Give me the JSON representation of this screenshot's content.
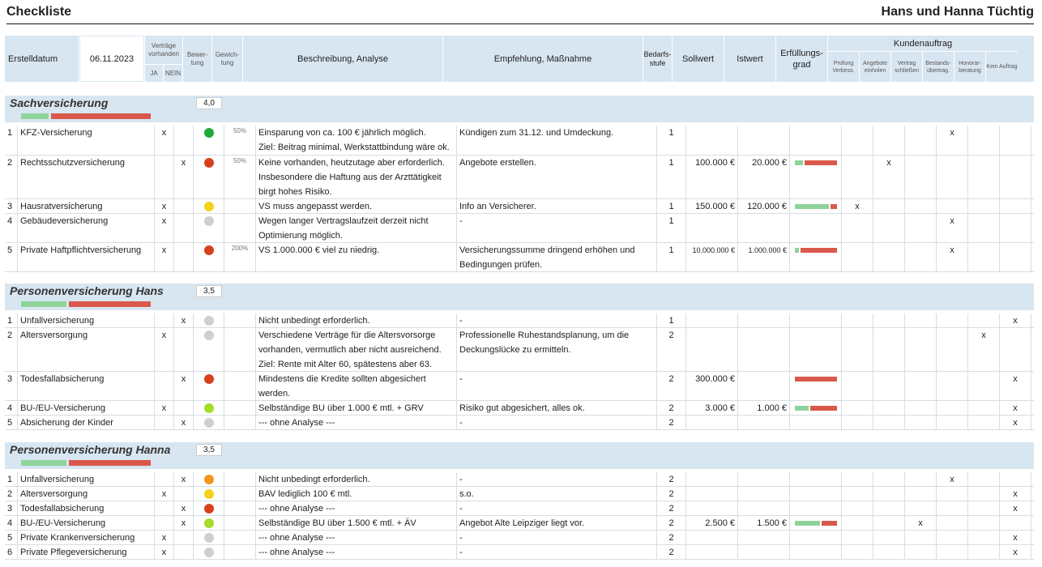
{
  "header": {
    "title": "Checkliste",
    "client": "Hans und Hanna Tüchtig"
  },
  "columns": {
    "erstelldatum": "Erstelldatum",
    "datum": "06.11.2023",
    "vertraege": "Verträge vorhanden",
    "ja": "JA",
    "nein": "NEIN",
    "bewertung": "Bewer-tung",
    "gewichtung": "Gewich-tung",
    "beschreibung": "Beschreibung, Analyse",
    "empfehlung": "Empfehlung, Maßnahme",
    "bedarf": "Bedarfs-stufe",
    "soll": "Sollwert",
    "ist": "Istwert",
    "erfuellung": "Erfüllungs-grad",
    "kundenauftrag": "Kundenauftrag",
    "ka": [
      "Prüfung Verbess.",
      "Angebote einholen",
      "Vertrag schließen",
      "Bestands-übertrag.",
      "Honorar-beratung",
      "Kein Auftrag"
    ]
  },
  "colors": {
    "green": "#1fa83a",
    "red": "#d7401e",
    "yellow": "#f3d21b",
    "grey": "#cfcfcf",
    "lime": "#a6dc2a",
    "orange": "#f3951f"
  },
  "sections": [
    {
      "title": "Sachversicherung",
      "score": "4,0",
      "bar": {
        "green": 0.23,
        "red": 0.77
      },
      "rows": [
        {
          "nr": "1",
          "name": "KFZ-Versicherung",
          "ja": "x",
          "nein": "",
          "rating": "green",
          "gew": "50%",
          "lines": [
            "Einsparung von ca. 100 € jährlich möglich.",
            "Ziel: Beitrag minimal, Werkstattbindung wäre ok."
          ],
          "emp": [
            "Kündigen zum 31.12. und Umdeckung."
          ],
          "stufe": "1",
          "soll": "",
          "ist": "",
          "fill": null,
          "ka": [
            "",
            "",
            "",
            "x",
            "",
            ""
          ]
        },
        {
          "nr": "2",
          "name": "Rechtsschutzversicherung",
          "ja": "",
          "nein": "x",
          "rating": "red",
          "gew": "50%",
          "lines": [
            "Keine vorhanden, heutzutage aber erforderlich.",
            "Insbesondere die Haftung aus der Arzttätigkeit",
            "birgt hohes Risiko."
          ],
          "emp": [
            "Angebote erstellen."
          ],
          "stufe": "1",
          "soll": "100.000 €",
          "ist": "20.000 €",
          "fill": 0.2,
          "ka": [
            "",
            "x",
            "",
            "",
            "",
            ""
          ]
        },
        {
          "nr": "3",
          "name": "Hausratversicherung",
          "ja": "x",
          "nein": "",
          "rating": "yellow",
          "gew": "",
          "lines": [
            "VS muss angepasst werden."
          ],
          "emp": [
            "Info an Versicherer."
          ],
          "stufe": "1",
          "soll": "150.000 €",
          "ist": "120.000 €",
          "fill": 0.8,
          "ka": [
            "x",
            "",
            "",
            "",
            "",
            ""
          ]
        },
        {
          "nr": "4",
          "name": "Gebäudeversicherung",
          "ja": "x",
          "nein": "",
          "rating": "grey",
          "gew": "",
          "lines": [
            "Wegen langer Vertragslaufzeit derzeit nicht",
            "Optimierung möglich."
          ],
          "emp": [
            "-"
          ],
          "stufe": "1",
          "soll": "",
          "ist": "",
          "fill": null,
          "ka": [
            "",
            "",
            "",
            "x",
            "",
            ""
          ]
        },
        {
          "nr": "5",
          "name": "Private Haftpflichtversicherung",
          "ja": "x",
          "nein": "",
          "rating": "red",
          "gew": "200%",
          "lines": [
            "VS 1.000.000 € viel zu niedrig."
          ],
          "emp": [
            "Versicherungssumme dringend erhöhen und",
            "Bedingungen prüfen."
          ],
          "stufe": "1",
          "soll": "10.000.000 €",
          "ist": "1.000.000 €",
          "fill": 0.1,
          "ka": [
            "",
            "",
            "",
            "x",
            "",
            ""
          ]
        }
      ]
    },
    {
      "title": "Personenversicherung Hans",
      "score": "3,5",
      "bar": {
        "green": 0.37,
        "red": 0.63
      },
      "rows": [
        {
          "nr": "1",
          "name": "Unfallversicherung",
          "ja": "",
          "nein": "x",
          "rating": "grey",
          "gew": "",
          "lines": [
            "Nicht unbedingt erforderlich."
          ],
          "emp": [
            "-"
          ],
          "stufe": "1",
          "soll": "",
          "ist": "",
          "fill": null,
          "ka": [
            "",
            "",
            "",
            "",
            "",
            "x"
          ]
        },
        {
          "nr": "2",
          "name": "Altersversorgung",
          "ja": "x",
          "nein": "",
          "rating": "grey",
          "gew": "",
          "lines": [
            "Verschiedene Verträge für die Altersvorsorge",
            "vorhanden, vermutlich aber nicht ausreichend.",
            "Ziel: Rente mit Alter 60, spätestens aber 63."
          ],
          "emp": [
            "Professionelle Ruhestandsplanung, um die",
            "Deckungslücke zu ermitteln."
          ],
          "stufe": "2",
          "soll": "",
          "ist": "",
          "fill": null,
          "ka": [
            "",
            "",
            "",
            "",
            "x",
            ""
          ]
        },
        {
          "nr": "3",
          "name": "Todesfallabsicherung",
          "ja": "",
          "nein": "x",
          "rating": "red",
          "gew": "",
          "lines": [
            "Mindestens die Kredite sollten abgesichert",
            "werden."
          ],
          "emp": [
            "-"
          ],
          "stufe": "2",
          "soll": "300.000 €",
          "ist": "",
          "fill": 0,
          "ka": [
            "",
            "",
            "",
            "",
            "",
            "x"
          ]
        },
        {
          "nr": "4",
          "name": "BU-/EU-Versicherung",
          "ja": "x",
          "nein": "",
          "rating": "lime",
          "gew": "",
          "lines": [
            "Selbständige BU über 1.000 € mtl. + GRV"
          ],
          "emp": [
            "Risiko gut abgesichert, alles ok."
          ],
          "stufe": "2",
          "soll": "3.000 €",
          "ist": "1.000 €",
          "fill": 0.33,
          "ka": [
            "",
            "",
            "",
            "",
            "",
            "x"
          ]
        },
        {
          "nr": "5",
          "name": "Absicherung der Kinder",
          "ja": "",
          "nein": "x",
          "rating": "grey",
          "gew": "",
          "lines": [
            "---  ohne Analyse  ---"
          ],
          "emp": [
            "-"
          ],
          "stufe": "2",
          "soll": "",
          "ist": "",
          "fill": null,
          "ka": [
            "",
            "",
            "",
            "",
            "",
            "x"
          ]
        }
      ]
    },
    {
      "title": "Personenversicherung Hanna",
      "score": "3,5",
      "bar": {
        "green": 0.37,
        "red": 0.63
      },
      "rows": [
        {
          "nr": "1",
          "name": "Unfallversicherung",
          "ja": "",
          "nein": "x",
          "rating": "orange",
          "gew": "",
          "lines": [
            "Nicht unbedingt erforderlich."
          ],
          "emp": [
            "-"
          ],
          "stufe": "2",
          "soll": "",
          "ist": "",
          "fill": null,
          "ka": [
            "",
            "",
            "",
            "x",
            "",
            ""
          ]
        },
        {
          "nr": "2",
          "name": "Altersversorgung",
          "ja": "x",
          "nein": "",
          "rating": "yellow",
          "gew": "",
          "lines": [
            "BAV lediglich 100 € mtl."
          ],
          "emp": [
            "s.o."
          ],
          "stufe": "2",
          "soll": "",
          "ist": "",
          "fill": null,
          "ka": [
            "",
            "",
            "",
            "",
            "",
            "x"
          ]
        },
        {
          "nr": "3",
          "name": "Todesfallabsicherung",
          "ja": "",
          "nein": "x",
          "rating": "red",
          "gew": "",
          "lines": [
            "---  ohne Analyse  ---"
          ],
          "emp": [
            "-"
          ],
          "stufe": "2",
          "soll": "",
          "ist": "",
          "fill": null,
          "ka": [
            "",
            "",
            "",
            "",
            "",
            "x"
          ]
        },
        {
          "nr": "4",
          "name": "BU-/EU-Versicherung",
          "ja": "",
          "nein": "x",
          "rating": "lime",
          "gew": "",
          "lines": [
            "Selbständige BU über 1.500 € mtl. + ÄV"
          ],
          "emp": [
            "Angebot Alte Leipziger liegt vor."
          ],
          "stufe": "2",
          "soll": "2.500 €",
          "ist": "1.500 €",
          "fill": 0.6,
          "ka": [
            "",
            "",
            "x",
            "",
            "",
            ""
          ]
        },
        {
          "nr": "5",
          "name": "Private Krankenversicherung",
          "ja": "x",
          "nein": "",
          "rating": "grey",
          "gew": "",
          "lines": [
            "---  ohne Analyse  ---"
          ],
          "emp": [
            "-"
          ],
          "stufe": "2",
          "soll": "",
          "ist": "",
          "fill": null,
          "ka": [
            "",
            "",
            "",
            "",
            "",
            "x"
          ]
        },
        {
          "nr": "6",
          "name": "Private Pflegeversicherung",
          "ja": "x",
          "nein": "",
          "rating": "grey",
          "gew": "",
          "lines": [
            "---  ohne Analyse  ---"
          ],
          "emp": [
            "-"
          ],
          "stufe": "2",
          "soll": "",
          "ist": "",
          "fill": null,
          "ka": [
            "",
            "",
            "",
            "",
            "",
            "x"
          ]
        }
      ]
    }
  ]
}
